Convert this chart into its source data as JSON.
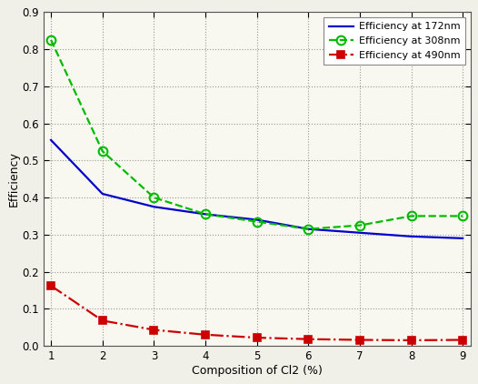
{
  "x": [
    1,
    2,
    3,
    4,
    5,
    6,
    7,
    8,
    9
  ],
  "efficiency_172": [
    0.555,
    0.41,
    0.375,
    0.355,
    0.34,
    0.315,
    0.305,
    0.295,
    0.29
  ],
  "efficiency_308": [
    0.825,
    0.525,
    0.4,
    0.355,
    0.335,
    0.315,
    0.325,
    0.35,
    0.35
  ],
  "efficiency_490": [
    0.162,
    0.068,
    0.043,
    0.03,
    0.022,
    0.018,
    0.016,
    0.015,
    0.016
  ],
  "color_172": "#0000cc",
  "color_308": "#00bb00",
  "color_490": "#cc0000",
  "xlabel": "Composition of Cl2 (%)",
  "ylabel": "Efficiency",
  "ylim": [
    0,
    0.9
  ],
  "xlim": [
    1,
    9
  ],
  "yticks": [
    0.0,
    0.1,
    0.2,
    0.3,
    0.4,
    0.5,
    0.6,
    0.7,
    0.8,
    0.9
  ],
  "xticks": [
    1,
    2,
    3,
    4,
    5,
    6,
    7,
    8,
    9
  ],
  "legend_172": "Efficiency at 172nm",
  "legend_308": "Efficiency at 308nm",
  "legend_490": "Efficiency at 490nm",
  "bg_color": "#f0f0e8",
  "plot_bg_color": "#f8f8f0"
}
